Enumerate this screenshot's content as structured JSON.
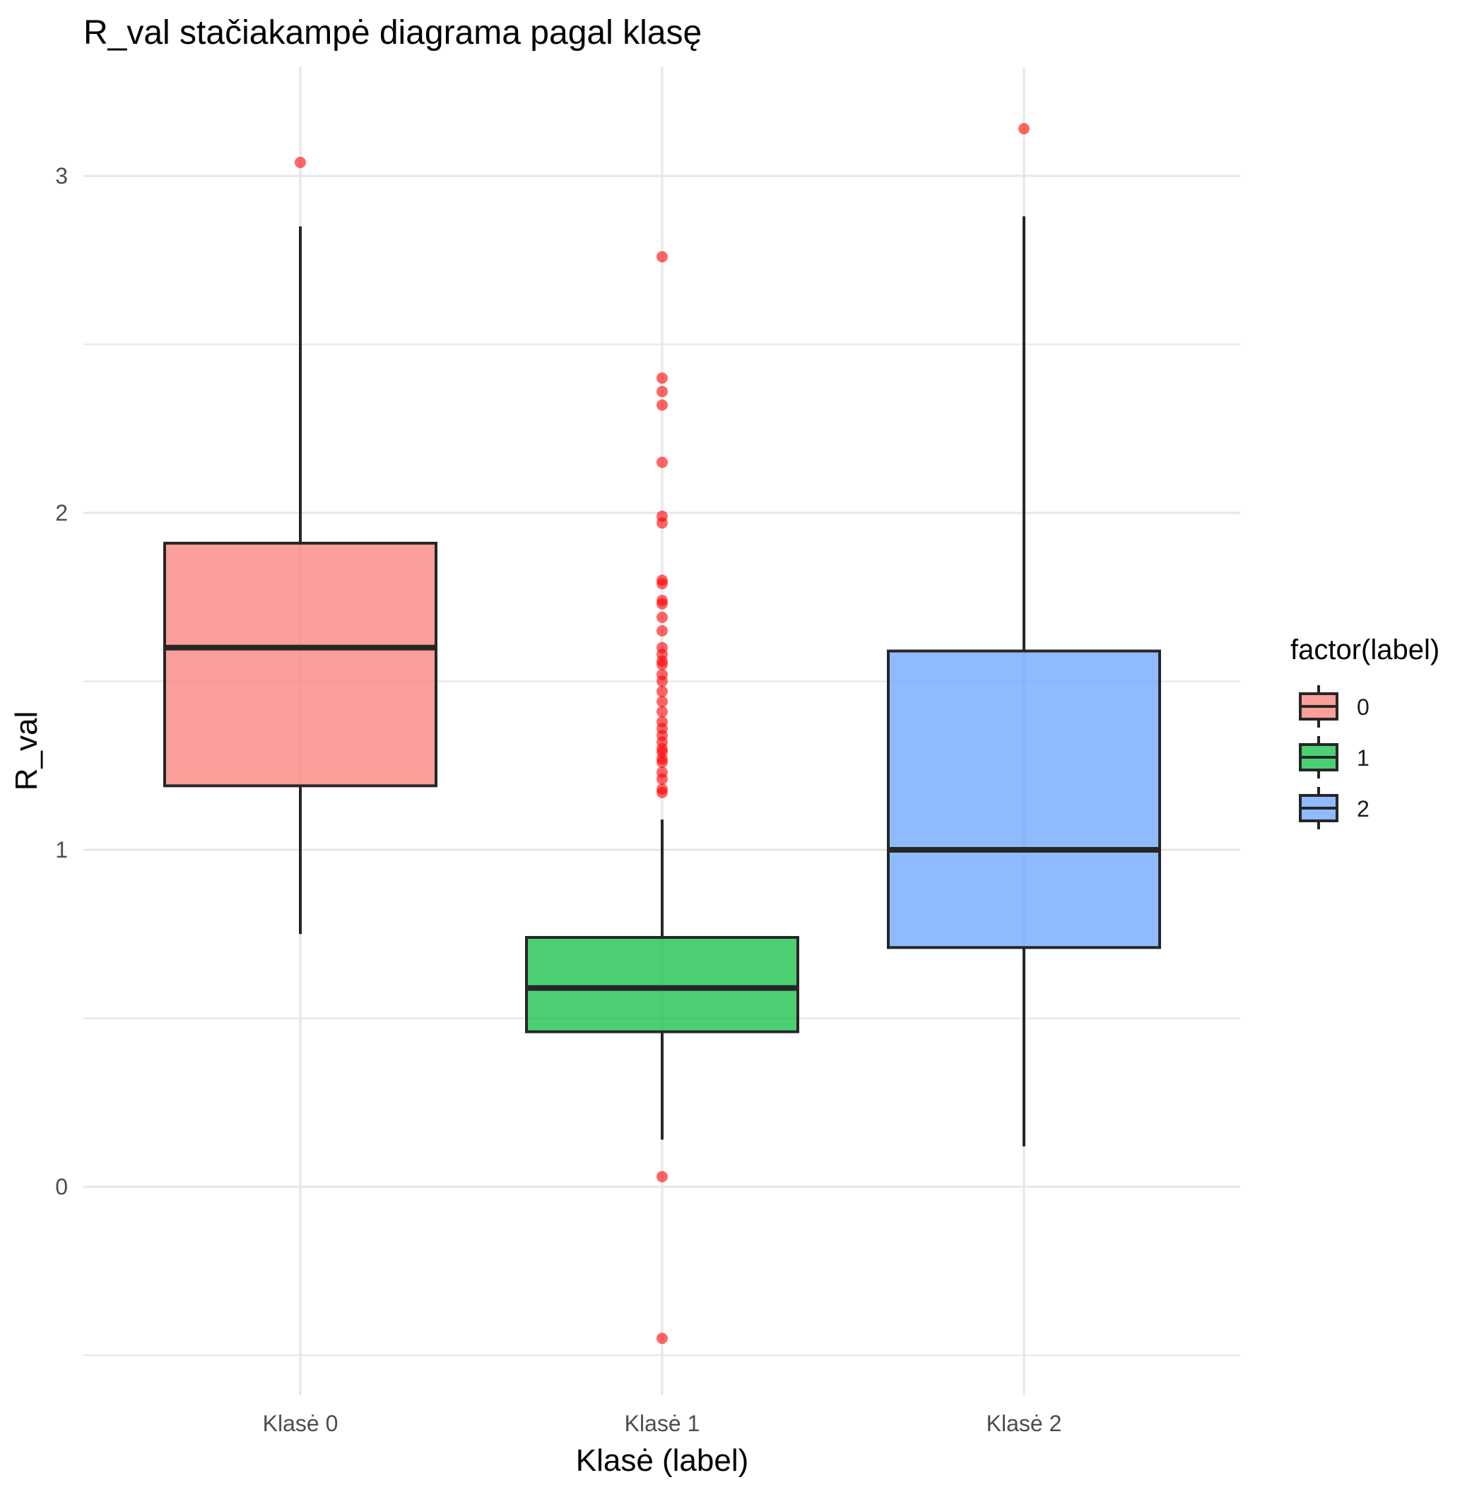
{
  "chart_data": {
    "type": "boxplot",
    "title": "R_val stačiakampė diagrama pagal klasę",
    "xlabel": "Klasė (label)",
    "ylabel": "R_val",
    "ylim": [
      -0.5,
      3.25
    ],
    "y_ticks": [
      0,
      1,
      2,
      3
    ],
    "y_tick_labels": [
      "0",
      "1",
      "2",
      "3"
    ],
    "grid": true,
    "legend": {
      "title": "factor(label)",
      "position": "right",
      "entries": [
        "0",
        "1",
        "2"
      ]
    },
    "colors": {
      "class0": "#F8766D",
      "class1": "#00BA38",
      "class2": "#619CFF",
      "outlier": "#FF0000",
      "box_line": "#262626",
      "grid": "#e6e6e6"
    },
    "categories": [
      "Klasė 0",
      "Klasė 1",
      "Klasė 2"
    ],
    "boxes": [
      {
        "label": "Klasė 0",
        "legend_key": "0",
        "whisker_low": 0.75,
        "q1": 1.19,
        "median": 1.6,
        "q3": 1.91,
        "whisker_high": 2.85,
        "outliers": [
          3.04
        ]
      },
      {
        "label": "Klasė 1",
        "legend_key": "1",
        "whisker_low": 0.14,
        "q1": 0.46,
        "median": 0.59,
        "q3": 0.74,
        "whisker_high": 1.09,
        "outliers": [
          2.76,
          2.4,
          2.36,
          2.32,
          2.15,
          1.99,
          1.97,
          1.8,
          1.79,
          1.74,
          1.73,
          1.69,
          1.65,
          1.6,
          1.58,
          1.56,
          1.55,
          1.52,
          1.5,
          1.47,
          1.44,
          1.41,
          1.38,
          1.36,
          1.34,
          1.32,
          1.3,
          1.29,
          1.27,
          1.26,
          1.23,
          1.21,
          1.18,
          1.17,
          0.03,
          -0.45
        ]
      },
      {
        "label": "Klasė 2",
        "legend_key": "2",
        "whisker_low": 0.12,
        "q1": 0.71,
        "median": 1.0,
        "q3": 1.59,
        "whisker_high": 2.88,
        "outliers": [
          3.14
        ]
      }
    ]
  }
}
